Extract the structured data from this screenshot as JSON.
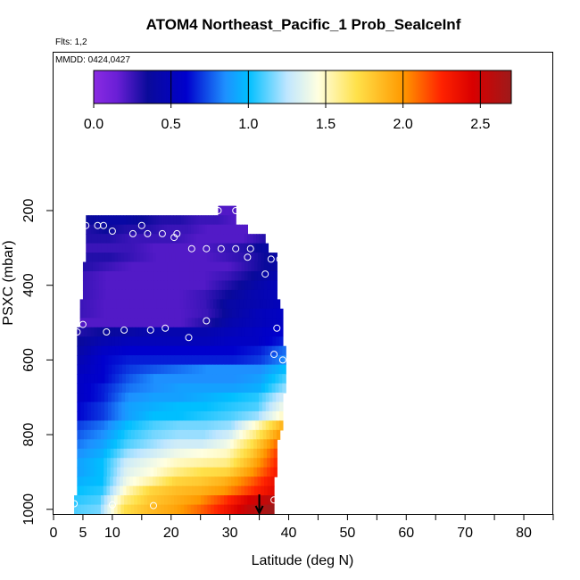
{
  "header": {
    "title": "ATOM4 Northeast_Pacific_1 Prob_SeaIceInf",
    "flights": "Flts: 1,2",
    "mmdd": "MMDD: 0424,0427"
  },
  "chart_data": {
    "type": "heatmap",
    "title": "ATOM4 Northeast_Pacific_1 Prob_SeaIceInf",
    "xlabel": "Latitude (deg N)",
    "ylabel": "PSXC (mbar)",
    "xlim": [
      0,
      85
    ],
    "ylim": [
      1010,
      180
    ],
    "y_reversed": true,
    "x_ticks": [
      0,
      5,
      10,
      20,
      30,
      40,
      50,
      60,
      70,
      80
    ],
    "y_ticks": [
      200,
      400,
      600,
      800,
      1000
    ],
    "grid": false,
    "colorbar": {
      "range": [
        0,
        2.7
      ],
      "ticks": [
        0.0,
        0.5,
        1.0,
        1.5,
        2.0,
        2.5
      ],
      "tick_labels": [
        "0.0",
        "0.5",
        "1.0",
        "1.5",
        "2.0",
        "2.5"
      ],
      "stops": [
        {
          "v": 0.0,
          "color": "#8a2be2"
        },
        {
          "v": 0.15,
          "color": "#6a1fd6"
        },
        {
          "v": 0.35,
          "color": "#0a0a9a"
        },
        {
          "v": 0.6,
          "color": "#0000cd"
        },
        {
          "v": 0.85,
          "color": "#1e90ff"
        },
        {
          "v": 1.0,
          "color": "#00bfff"
        },
        {
          "v": 1.25,
          "color": "#bfe6ff"
        },
        {
          "v": 1.45,
          "color": "#ffffe0"
        },
        {
          "v": 1.7,
          "color": "#ffe14a"
        },
        {
          "v": 2.0,
          "color": "#ff9900"
        },
        {
          "v": 2.25,
          "color": "#ff2200"
        },
        {
          "v": 2.45,
          "color": "#d90000"
        },
        {
          "v": 2.7,
          "color": "#9e1a1a"
        }
      ]
    },
    "rows": [
      {
        "p": 200,
        "x0": 28,
        "x1": 31,
        "v": 0.2
      },
      {
        "p": 225,
        "x0": 5.5,
        "x1": 31,
        "v": [
          0.35,
          0.4,
          0.4,
          0.35,
          0.3,
          0.3,
          0.25,
          0.25,
          0.2
        ]
      },
      {
        "p": 250,
        "x0": 5.5,
        "x1": 33,
        "v": [
          0.3,
          0.35,
          0.3,
          0.3,
          0.25,
          0.25,
          0.2,
          0.2,
          0.2
        ]
      },
      {
        "p": 275,
        "x0": 5.5,
        "x1": 36,
        "v": [
          0.3,
          0.3,
          0.25,
          0.25,
          0.25,
          0.2,
          0.2,
          0.2,
          0.3
        ]
      },
      {
        "p": 300,
        "x0": 5.5,
        "x1": 36.5,
        "v": [
          0.25,
          0.25,
          0.25,
          0.2,
          0.2,
          0.2,
          0.25,
          0.3,
          0.4
        ]
      },
      {
        "p": 325,
        "x0": 5.5,
        "x1": 38,
        "v": [
          0.3,
          0.3,
          0.25,
          0.2,
          0.2,
          0.2,
          0.25,
          0.3,
          0.4
        ]
      },
      {
        "p": 350,
        "x0": 5,
        "x1": 38,
        "v": [
          0.3,
          0.25,
          0.2,
          0.2,
          0.2,
          0.2,
          0.2,
          0.3,
          0.4
        ]
      },
      {
        "p": 375,
        "x0": 5,
        "x1": 38,
        "v": [
          0.25,
          0.2,
          0.2,
          0.2,
          0.2,
          0.2,
          0.25,
          0.35,
          0.45
        ]
      },
      {
        "p": 400,
        "x0": 5,
        "x1": 38,
        "v": [
          0.25,
          0.2,
          0.2,
          0.2,
          0.2,
          0.2,
          0.3,
          0.4,
          0.5
        ]
      },
      {
        "p": 425,
        "x0": 5,
        "x1": 38,
        "v": [
          0.25,
          0.2,
          0.2,
          0.2,
          0.2,
          0.25,
          0.35,
          0.45,
          0.5
        ]
      },
      {
        "p": 450,
        "x0": 4.5,
        "x1": 38.5,
        "v": [
          0.25,
          0.2,
          0.2,
          0.2,
          0.2,
          0.25,
          0.4,
          0.45,
          0.5
        ]
      },
      {
        "p": 475,
        "x0": 4.5,
        "x1": 39,
        "v": [
          0.25,
          0.2,
          0.2,
          0.2,
          0.2,
          0.25,
          0.4,
          0.5,
          0.55
        ]
      },
      {
        "p": 500,
        "x0": 4.5,
        "x1": 39,
        "v": [
          0.2,
          0.2,
          0.2,
          0.2,
          0.2,
          0.3,
          0.45,
          0.5,
          0.55
        ]
      },
      {
        "p": 525,
        "x0": 4,
        "x1": 39,
        "v": [
          0.3,
          0.35,
          0.4,
          0.45,
          0.45,
          0.45,
          0.5,
          0.55,
          0.6
        ]
      },
      {
        "p": 550,
        "x0": 4,
        "x1": 39,
        "v": [
          0.35,
          0.45,
          0.5,
          0.5,
          0.5,
          0.5,
          0.55,
          0.55,
          0.65
        ]
      },
      {
        "p": 575,
        "x0": 4,
        "x1": 39.5,
        "v": [
          0.4,
          0.55,
          0.6,
          0.6,
          0.6,
          0.6,
          0.6,
          0.65,
          0.8
        ]
      },
      {
        "p": 600,
        "x0": 4,
        "x1": 39.5,
        "v": [
          0.45,
          0.6,
          0.65,
          0.65,
          0.65,
          0.65,
          0.65,
          0.7,
          0.85
        ]
      },
      {
        "p": 625,
        "x0": 4,
        "x1": 39.5,
        "v": [
          0.5,
          0.6,
          0.7,
          0.75,
          0.8,
          0.85,
          0.85,
          0.85,
          1.0
        ]
      },
      {
        "p": 650,
        "x0": 4,
        "x1": 39.5,
        "v": [
          0.55,
          0.6,
          0.75,
          0.85,
          0.85,
          0.85,
          0.85,
          0.9,
          1.1
        ]
      },
      {
        "p": 675,
        "x0": 4,
        "x1": 39.5,
        "v": [
          0.55,
          0.65,
          0.8,
          0.85,
          0.9,
          0.9,
          0.9,
          0.95,
          1.2
        ]
      },
      {
        "p": 700,
        "x0": 4,
        "x1": 39,
        "v": [
          0.55,
          0.65,
          0.85,
          0.9,
          0.9,
          0.95,
          1.0,
          1.05,
          1.3
        ]
      },
      {
        "p": 725,
        "x0": 4,
        "x1": 39,
        "v": [
          0.6,
          0.7,
          0.9,
          0.95,
          1.0,
          1.0,
          1.05,
          1.1,
          1.4
        ]
      },
      {
        "p": 750,
        "x0": 4,
        "x1": 39,
        "v": [
          0.6,
          0.7,
          0.9,
          1.0,
          1.0,
          1.05,
          1.1,
          1.2,
          1.5
        ]
      },
      {
        "p": 775,
        "x0": 4,
        "x1": 39,
        "v": [
          0.7,
          0.8,
          1.0,
          1.1,
          1.15,
          1.15,
          1.2,
          1.5,
          1.9
        ]
      },
      {
        "p": 800,
        "x0": 4,
        "x1": 38.5,
        "v": [
          0.75,
          0.85,
          1.05,
          1.15,
          1.2,
          1.2,
          1.3,
          1.6,
          2.0
        ]
      },
      {
        "p": 825,
        "x0": 4,
        "x1": 38,
        "v": [
          0.8,
          0.9,
          1.1,
          1.2,
          1.3,
          1.3,
          1.4,
          1.7,
          2.1
        ]
      },
      {
        "p": 850,
        "x0": 4,
        "x1": 38,
        "v": [
          0.85,
          0.95,
          1.2,
          1.3,
          1.4,
          1.45,
          1.5,
          1.8,
          2.2
        ]
      },
      {
        "p": 875,
        "x0": 4,
        "x1": 38,
        "v": [
          0.9,
          1.0,
          1.3,
          1.4,
          1.5,
          1.55,
          1.6,
          1.9,
          2.25
        ]
      },
      {
        "p": 900,
        "x0": 4,
        "x1": 38,
        "v": [
          0.9,
          1.0,
          1.35,
          1.45,
          1.6,
          1.7,
          1.75,
          2.0,
          2.3
        ]
      },
      {
        "p": 925,
        "x0": 4,
        "x1": 37.5,
        "v": [
          0.95,
          1.0,
          1.4,
          1.55,
          1.75,
          1.8,
          1.9,
          2.1,
          2.35
        ]
      },
      {
        "p": 950,
        "x0": 4,
        "x1": 37.5,
        "v": [
          1.0,
          1.05,
          1.5,
          1.75,
          1.85,
          1.9,
          2.0,
          2.2,
          2.4
        ]
      },
      {
        "p": 975,
        "x0": 3.5,
        "x1": 37.5,
        "v": [
          1.05,
          1.1,
          1.6,
          1.8,
          1.9,
          2.0,
          2.2,
          2.45,
          2.6
        ]
      },
      {
        "p": 1000,
        "x0": 3.5,
        "x1": 37.5,
        "v": [
          1.1,
          1.15,
          1.7,
          1.85,
          1.95,
          2.1,
          2.3,
          2.55,
          2.7
        ]
      }
    ],
    "points": [
      [
        28,
        200
      ],
      [
        31,
        200
      ],
      [
        5.5,
        240
      ],
      [
        7.5,
        240
      ],
      [
        8.5,
        240
      ],
      [
        15,
        240
      ],
      [
        10,
        255
      ],
      [
        13.5,
        262
      ],
      [
        16,
        262
      ],
      [
        18.5,
        262
      ],
      [
        21,
        262
      ],
      [
        20.5,
        272
      ],
      [
        23.5,
        302
      ],
      [
        26,
        302
      ],
      [
        28.5,
        302
      ],
      [
        31,
        302
      ],
      [
        33.5,
        302
      ],
      [
        33,
        325
      ],
      [
        37,
        330
      ],
      [
        38.5,
        330
      ],
      [
        36,
        370
      ],
      [
        4,
        525
      ],
      [
        5,
        505
      ],
      [
        9,
        525
      ],
      [
        12,
        520
      ],
      [
        16.5,
        520
      ],
      [
        19,
        515
      ],
      [
        23,
        540
      ],
      [
        26,
        495
      ],
      [
        38,
        515
      ],
      [
        37.5,
        585
      ],
      [
        39,
        600
      ],
      [
        3.5,
        985
      ],
      [
        10,
        988
      ],
      [
        17,
        990
      ],
      [
        37.5,
        975
      ]
    ],
    "arrow": {
      "x": 35,
      "p0": 960,
      "p1": 1010
    }
  }
}
